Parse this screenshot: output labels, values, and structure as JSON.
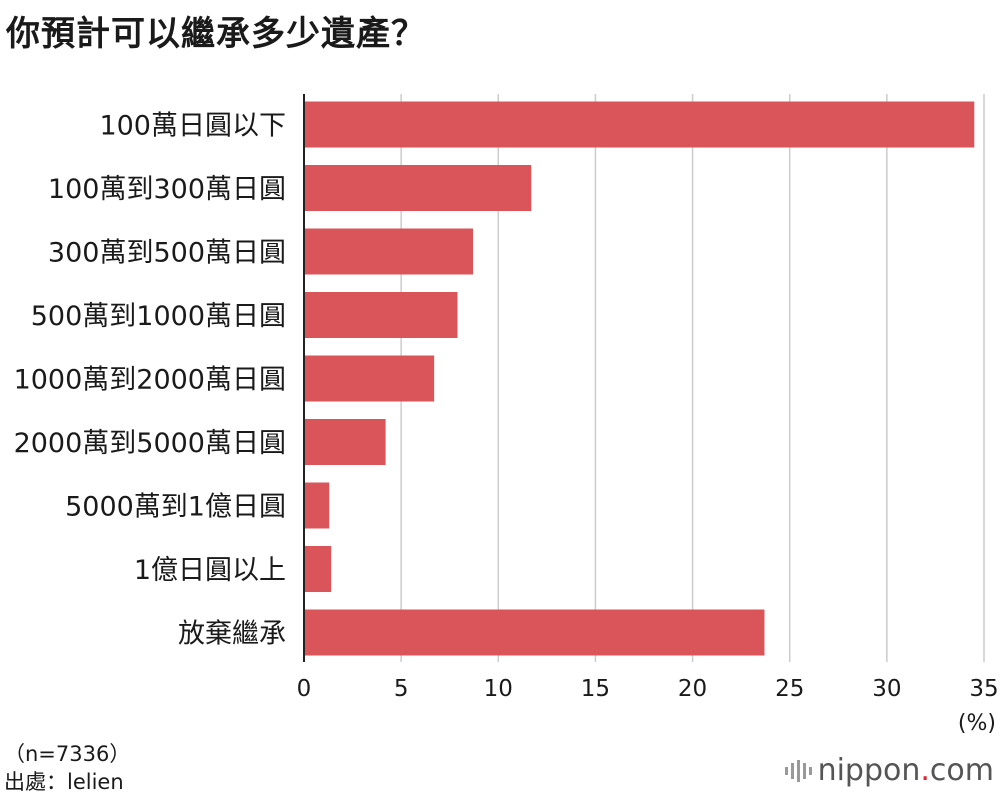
{
  "chart_data": {
    "type": "bar",
    "orientation": "horizontal",
    "title": "你預計可以繼承多少遺產？",
    "categories": [
      "100萬日圓以下",
      "100萬到300萬日圓",
      "300萬到500萬日圓",
      "500萬到1000萬日圓",
      "1000萬到2000萬日圓",
      "2000萬到5000萬日圓",
      "5000萬到1億日圓",
      "1億日圓以上",
      "放棄繼承"
    ],
    "values": [
      34.5,
      11.7,
      8.7,
      7.9,
      6.7,
      4.2,
      1.3,
      1.4,
      23.7
    ],
    "xlim": [
      0,
      35
    ],
    "xticks": [
      0,
      5,
      10,
      15,
      20,
      25,
      30,
      35
    ],
    "xlabel": "(%)",
    "grid": true,
    "bar_color": "#d9555a",
    "grid_color": "#cccccc"
  },
  "footer": {
    "sample": "（n=7336）",
    "source": "出處：lelien"
  },
  "brand": {
    "name": "nippon",
    "dot": ".",
    "suffix": "com",
    "accent": "#e0242f"
  }
}
